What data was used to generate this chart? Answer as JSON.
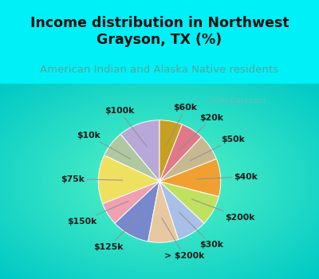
{
  "title": "Income distribution in Northwest\nGrayson, TX (%)",
  "subtitle": "American Indian and Alaska Native residents",
  "watermark": "City-Data.com",
  "labels": [
    "$100k",
    "$10k",
    "$75k",
    "$150k",
    "$125k",
    "> $200k",
    "$30k",
    "$200k",
    "$40k",
    "$50k",
    "$20k",
    "$60k"
  ],
  "sizes": [
    11,
    7,
    13,
    6,
    10,
    8,
    8,
    8,
    10,
    7,
    6,
    6
  ],
  "colors": [
    "#b8a8d8",
    "#b0c8a0",
    "#f0e060",
    "#f0a0b0",
    "#7888cc",
    "#e8c8a0",
    "#a8c0e8",
    "#c0e060",
    "#f0a030",
    "#c8b890",
    "#e07888",
    "#c8a020"
  ],
  "bg_top": "#00f0f8",
  "bg_pie_color": "#d8f0e0",
  "title_color": "#101010",
  "subtitle_color": "#50a898",
  "startangle": 90,
  "label_fontsize": 7.8,
  "title_fontsize": 12.5,
  "subtitle_fontsize": 9.5
}
